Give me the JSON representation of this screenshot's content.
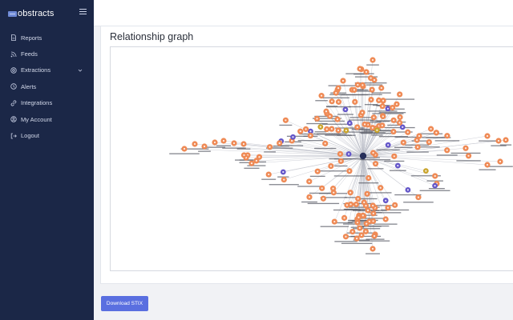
{
  "brand": {
    "name": "obstracts"
  },
  "nav": {
    "items": [
      {
        "label": "Reports",
        "icon": "file-icon"
      },
      {
        "label": "Feeds",
        "icon": "rss-icon"
      },
      {
        "label": "Extractions",
        "icon": "target-icon",
        "expandable": true
      },
      {
        "label": "Alerts",
        "icon": "bell-icon"
      },
      {
        "label": "Integrations",
        "icon": "link-icon"
      },
      {
        "label": "My Account",
        "icon": "user-icon"
      },
      {
        "label": "Logout",
        "icon": "logout-icon"
      }
    ]
  },
  "graph_section": {
    "title": "Relationship graph"
  },
  "actions": {
    "download_label": "Download STIX"
  },
  "colors": {
    "sidebar_bg": "#1b2747",
    "accent": "#5a6fe0",
    "node_orange": "#ef8a55",
    "node_purple": "#6456c9",
    "node_gold": "#c9a42b",
    "node_dark": "#27305a"
  }
}
